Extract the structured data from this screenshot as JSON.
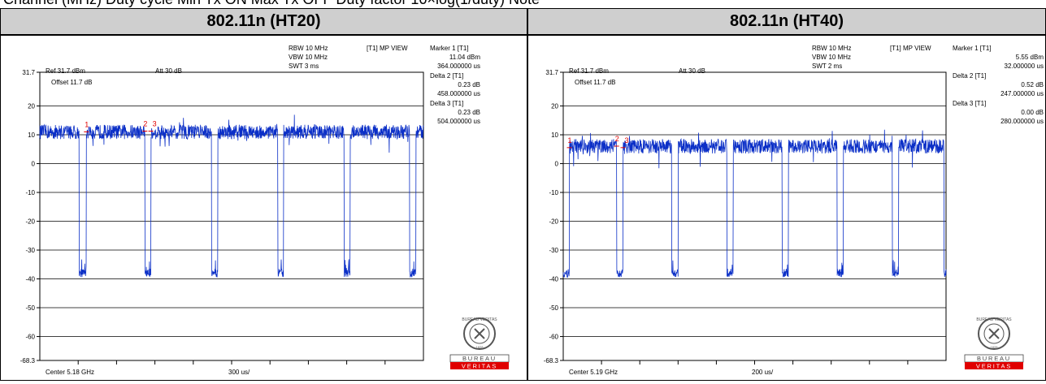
{
  "top_caption": "Channel (MHz)  Duty cycle  Min Tx ON  Max Tx OFF  Duty factor  10×log(1/duty) Note",
  "colors": {
    "trace": "#0b2fc7",
    "marker": "#e00000",
    "header_bg": "#cfcfcf"
  },
  "logo": {
    "ring_text": "BUREAU VERITAS",
    "year": "1828",
    "word1": "BUREAU",
    "word2": "VERITAS"
  },
  "chart_data": [
    {
      "type": "line",
      "title": "802.11n (HT20)",
      "settings": {
        "ref": "Ref 31.7 dBm",
        "att": "Att 30 dB",
        "offset": "Offset 11.7 dB",
        "rbw": "RBW 10 MHz",
        "vbw": "VBW 10 MHz",
        "swt": "SWT 3 ms",
        "view": "[T1] MP VIEW"
      },
      "center": "Center 5.18 GHz",
      "span_per_div": "300 us/",
      "xlim": [
        0,
        3000
      ],
      "ylim": [
        -68.3,
        31.7
      ],
      "y_ticks": [
        31.7,
        20,
        10,
        0,
        -10,
        -20,
        -30,
        -40,
        -50,
        -60,
        -68.3
      ],
      "y_tick_labels": [
        "31.7",
        "20",
        "10",
        "0",
        "-10",
        "-20",
        "-30",
        "-40",
        "-50",
        "-60",
        "-68.3"
      ],
      "grid": true,
      "markers": [
        {
          "label": "Marker 1 [T1]",
          "value": "11.04 dBm",
          "time": "364.000000 us",
          "plot_label": "1",
          "x": 364,
          "y": 11.04
        },
        {
          "label": "Delta 2 [T1]",
          "value": "0.23 dB",
          "time": "458.000000 us",
          "plot_label": "2",
          "x": 822,
          "y": 11.27
        },
        {
          "label": "Delta 3 [T1]",
          "value": "0.23 dB",
          "time": "504.000000 us",
          "plot_label": "3",
          "x": 868,
          "y": 11.27
        }
      ],
      "on_level": 11,
      "off_level": -38,
      "off_gaps": [
        [
          308,
          364
        ],
        [
          822,
          868
        ],
        [
          1342,
          1392
        ],
        [
          1862,
          1906
        ],
        [
          2380,
          2426
        ],
        [
          2892,
          2940
        ]
      ]
    },
    {
      "type": "line",
      "title": "802.11n (HT40)",
      "settings": {
        "ref": "Ref 31.7 dBm",
        "att": "Att 30 dB",
        "offset": "Offset 11.7 dB",
        "rbw": "RBW 10 MHz",
        "vbw": "VBW 10 MHz",
        "swt": "SWT 2 ms",
        "view": "[T1] MP VIEW"
      },
      "center": "Center 5.19 GHz",
      "span_per_div": "200 us/",
      "xlim": [
        0,
        2000
      ],
      "ylim": [
        -68.3,
        31.7
      ],
      "y_ticks": [
        31.7,
        20,
        10,
        0,
        -10,
        -20,
        -30,
        -40,
        -50,
        -60,
        -68.3
      ],
      "y_tick_labels": [
        "31.7",
        "20",
        "10",
        "0",
        "-10",
        "-20",
        "-30",
        "-40",
        "-50",
        "-60",
        "-68.3"
      ],
      "grid": true,
      "markers": [
        {
          "label": "Marker 1 [T1]",
          "value": "5.55 dBm",
          "time": "32.000000 us",
          "plot_label": "1",
          "x": 32,
          "y": 5.55
        },
        {
          "label": "Delta 2 [T1]",
          "value": "0.52 dB",
          "time": "247.000000 us",
          "plot_label": "2",
          "x": 279,
          "y": 6.07
        },
        {
          "label": "Delta 3 [T1]",
          "value": "0.00 dB",
          "time": "280.000000 us",
          "plot_label": "3",
          "x": 312,
          "y": 5.55
        }
      ],
      "on_level": 6,
      "off_level": -38,
      "off_gaps": [
        [
          0,
          32
        ],
        [
          279,
          312
        ],
        [
          567,
          600
        ],
        [
          855,
          888
        ],
        [
          1143,
          1176
        ],
        [
          1431,
          1464
        ],
        [
          1719,
          1752
        ],
        [
          1990,
          2000
        ]
      ]
    }
  ]
}
